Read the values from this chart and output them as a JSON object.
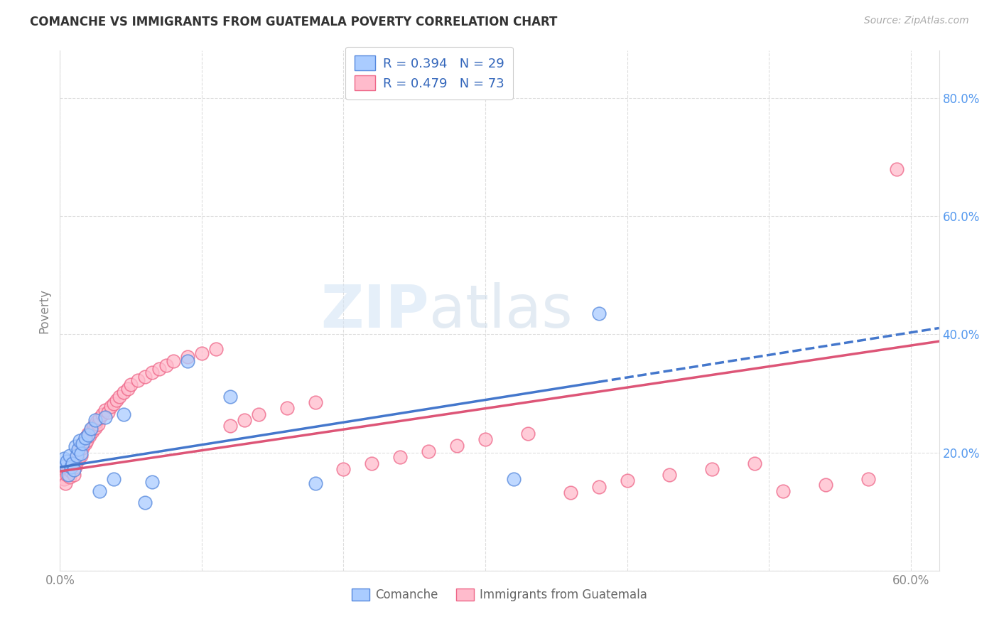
{
  "title": "COMANCHE VS IMMIGRANTS FROM GUATEMALA POVERTY CORRELATION CHART",
  "source": "Source: ZipAtlas.com",
  "ylabel": "Poverty",
  "label_comanche": "Comanche",
  "label_guatemala": "Immigrants from Guatemala",
  "xlim": [
    0.0,
    0.62
  ],
  "ylim": [
    0.0,
    0.88
  ],
  "xtick_vals": [
    0.0,
    0.1,
    0.2,
    0.3,
    0.4,
    0.5,
    0.6
  ],
  "xtick_show": [
    "0.0%",
    "",
    "",
    "",
    "",
    "",
    "60.0%"
  ],
  "ytick_vals": [
    0.0,
    0.2,
    0.4,
    0.6,
    0.8
  ],
  "ytick_labels": [
    "",
    "20.0%",
    "40.0%",
    "60.0%",
    "80.0%"
  ],
  "grid_color": "#dddddd",
  "bg_color": "#ffffff",
  "blue_fill": "#aaccff",
  "blue_edge": "#5588dd",
  "pink_fill": "#ffbbcc",
  "pink_edge": "#ee6688",
  "blue_line_color": "#4477cc",
  "pink_line_color": "#dd5577",
  "legend_text_color": "#3366bb",
  "yaxis_color": "#5599ee",
  "xaxis_color": "#888888",
  "watermark_color": "#d5e5f5",
  "blue_slope": 0.38,
  "blue_intercept": 0.175,
  "pink_slope": 0.355,
  "pink_intercept": 0.168,
  "comanche_x": [
    0.003,
    0.004,
    0.005,
    0.006,
    0.007,
    0.008,
    0.009,
    0.01,
    0.011,
    0.012,
    0.013,
    0.014,
    0.015,
    0.016,
    0.018,
    0.02,
    0.022,
    0.025,
    0.028,
    0.032,
    0.038,
    0.045,
    0.06,
    0.065,
    0.09,
    0.12,
    0.18,
    0.32,
    0.38
  ],
  "comanche_y": [
    0.19,
    0.178,
    0.185,
    0.162,
    0.195,
    0.175,
    0.182,
    0.17,
    0.21,
    0.195,
    0.205,
    0.22,
    0.198,
    0.215,
    0.225,
    0.23,
    0.24,
    0.255,
    0.135,
    0.26,
    0.155,
    0.265,
    0.115,
    0.15,
    0.355,
    0.295,
    0.148,
    0.155,
    0.435
  ],
  "guatemala_x": [
    0.002,
    0.003,
    0.004,
    0.005,
    0.005,
    0.006,
    0.007,
    0.008,
    0.009,
    0.01,
    0.01,
    0.011,
    0.012,
    0.013,
    0.013,
    0.014,
    0.015,
    0.015,
    0.016,
    0.017,
    0.018,
    0.018,
    0.019,
    0.02,
    0.021,
    0.022,
    0.023,
    0.024,
    0.025,
    0.026,
    0.027,
    0.028,
    0.03,
    0.032,
    0.034,
    0.036,
    0.038,
    0.04,
    0.042,
    0.045,
    0.048,
    0.05,
    0.055,
    0.06,
    0.065,
    0.07,
    0.075,
    0.08,
    0.09,
    0.1,
    0.11,
    0.12,
    0.13,
    0.14,
    0.16,
    0.18,
    0.2,
    0.22,
    0.24,
    0.26,
    0.28,
    0.3,
    0.33,
    0.36,
    0.38,
    0.4,
    0.43,
    0.46,
    0.49,
    0.51,
    0.54,
    0.57,
    0.59
  ],
  "guatemala_y": [
    0.165,
    0.155,
    0.148,
    0.162,
    0.175,
    0.17,
    0.158,
    0.168,
    0.178,
    0.162,
    0.185,
    0.175,
    0.192,
    0.188,
    0.2,
    0.205,
    0.195,
    0.212,
    0.208,
    0.218,
    0.215,
    0.225,
    0.22,
    0.232,
    0.228,
    0.238,
    0.235,
    0.245,
    0.242,
    0.252,
    0.248,
    0.258,
    0.265,
    0.272,
    0.268,
    0.278,
    0.282,
    0.288,
    0.295,
    0.302,
    0.308,
    0.315,
    0.322,
    0.328,
    0.335,
    0.342,
    0.348,
    0.355,
    0.362,
    0.368,
    0.375,
    0.245,
    0.255,
    0.265,
    0.275,
    0.285,
    0.172,
    0.182,
    0.192,
    0.202,
    0.212,
    0.222,
    0.232,
    0.132,
    0.142,
    0.152,
    0.162,
    0.172,
    0.182,
    0.135,
    0.145,
    0.155,
    0.68
  ]
}
